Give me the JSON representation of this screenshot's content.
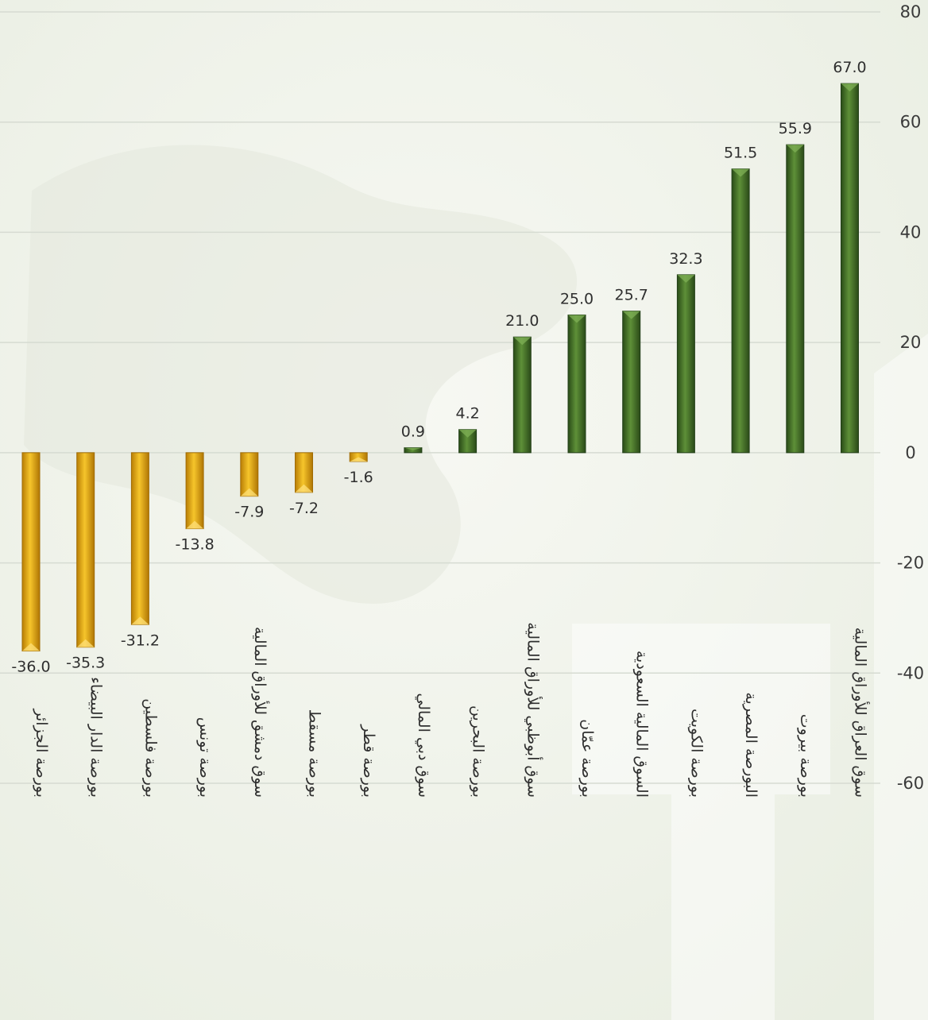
{
  "chart_data": {
    "type": "bar",
    "title": "",
    "xlabel": "",
    "ylabel": "",
    "ylim": [
      -60,
      80
    ],
    "yticks": [
      80,
      60,
      40,
      20,
      0,
      -20,
      -40,
      -60
    ],
    "grid": true,
    "y_axis_side": "right",
    "colors": {
      "positive": "#3f6e26",
      "negative": "#e0a30d",
      "grid": "#d6dbd2"
    },
    "categories": [
      "بورصة الجزائر",
      "بورصة الدار البيضاء",
      "بورصة فلسطين",
      "بورصة تونس",
      "سوق دمشق للأوراق المالية",
      "بورصة مسقط",
      "بورصة قطر",
      "سوق دبي المالي",
      "بورصة البحرين",
      "سوق أبوظبي للأوراق المالية",
      "بورصة عمّان",
      "السوق المالية السعودية",
      "بورصة الكويت",
      "البورصة المصرية",
      "بورصة بيروت",
      "سوق العراق للأوراق المالية"
    ],
    "values": [
      -36.0,
      -35.3,
      -31.2,
      -13.8,
      -7.9,
      -7.2,
      -1.6,
      0.9,
      4.2,
      21.0,
      25.0,
      25.7,
      32.3,
      51.5,
      55.9,
      67.0
    ],
    "value_labels": [
      "-36.0",
      "-35.3",
      "-31.2",
      "-13.8",
      "-7.9",
      "-7.2",
      "-1.6",
      "0.9",
      "4.2",
      "21.0",
      "25.0",
      "25.7",
      "32.3",
      "51.5",
      "55.9",
      "67.0"
    ]
  }
}
